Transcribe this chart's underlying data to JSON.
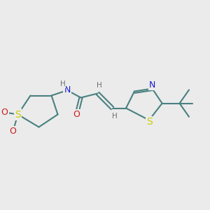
{
  "background_color": "#ebebeb",
  "bond_color": "#4a8080",
  "bond_width": 1.5,
  "atom_colors": {
    "N": "#1a1acc",
    "O": "#cc1a1a",
    "S": "#cccc00",
    "H": "#707070"
  },
  "font_size_atom": 9,
  "font_size_H": 7.5,
  "fig_width": 3.0,
  "fig_height": 3.0,
  "dpi": 100,
  "xlim": [
    0,
    10
  ],
  "ylim": [
    0,
    10
  ]
}
